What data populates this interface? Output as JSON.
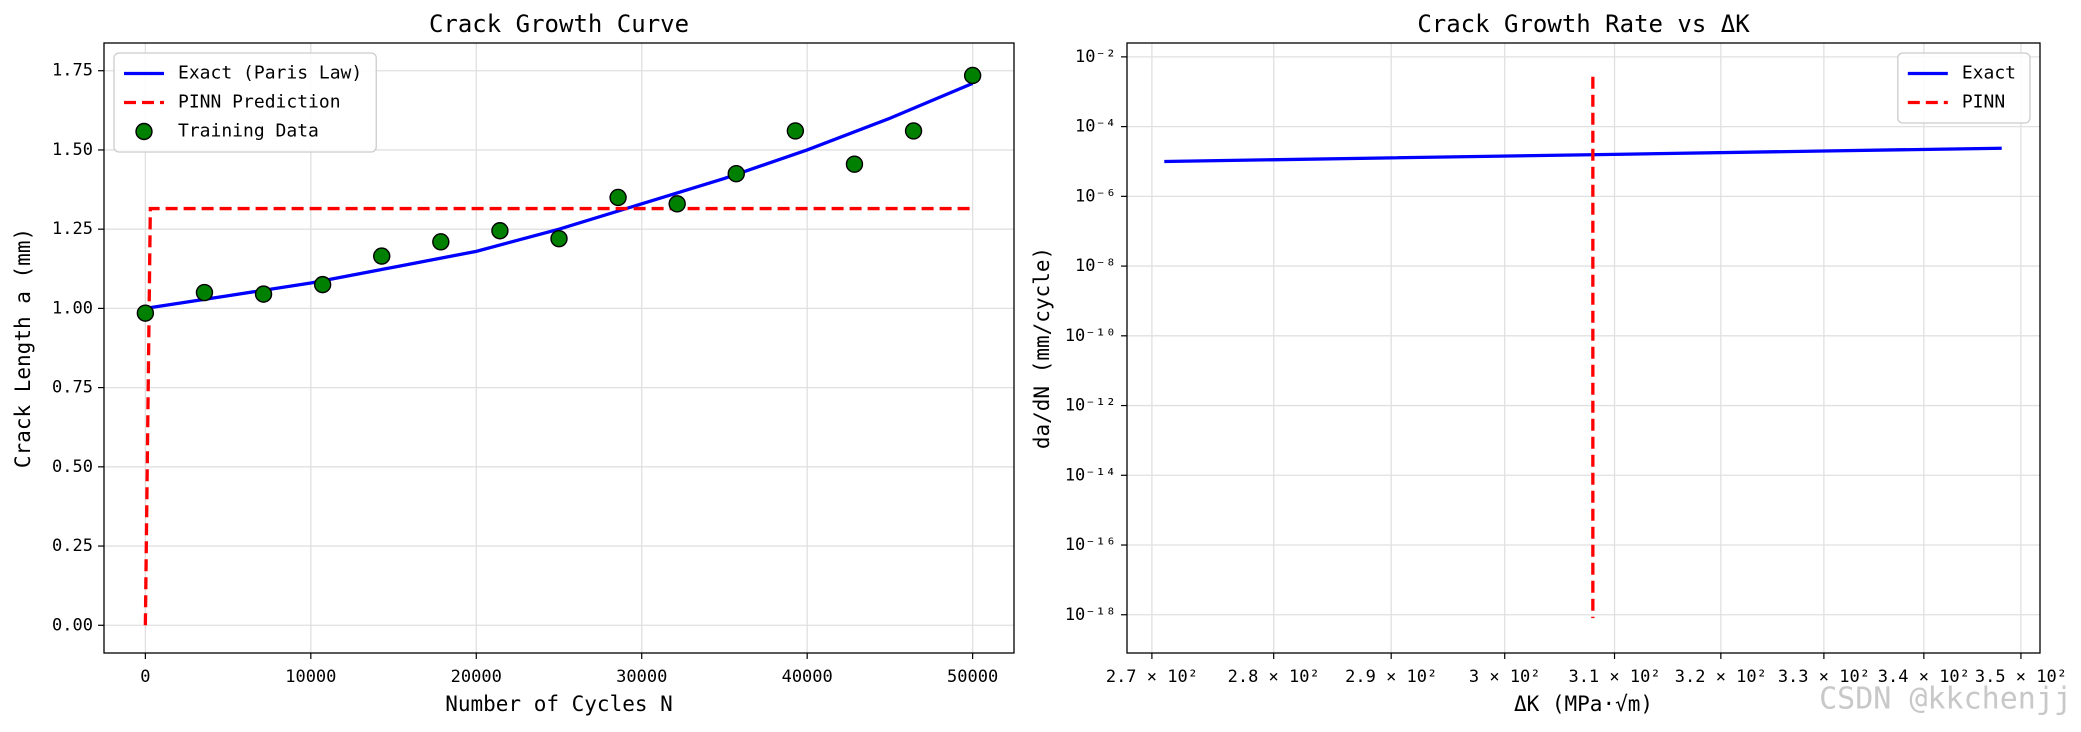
{
  "chart_data": [
    {
      "type": "line",
      "title": "Crack Growth Curve",
      "xlabel": "Number of Cycles N",
      "ylabel": "Crack Length a (mm)",
      "xlim": [
        -2500,
        52500
      ],
      "ylim": [
        -0.0875,
        1.8375
      ],
      "xticks": [
        0,
        10000,
        20000,
        30000,
        40000,
        50000
      ],
      "yticks": [
        {
          "value": 0,
          "label": "0.00"
        },
        0.25,
        {
          "value": 0.5,
          "label": "0.50"
        },
        0.75,
        {
          "value": 1,
          "label": "1.00"
        },
        1.25,
        {
          "value": 1.5,
          "label": "1.50"
        },
        1.75
      ],
      "grid": true,
      "legend": "upper left",
      "series": [
        {
          "name": "Exact (Paris Law)",
          "type": "line",
          "color": "#0000ff",
          "linestyle": "solid",
          "x": [
            0,
            5000,
            10000,
            15000,
            20000,
            25000,
            30000,
            35000,
            40000,
            45000,
            50000
          ],
          "values": [
            1.0,
            1.04,
            1.08,
            1.13,
            1.18,
            1.25,
            1.33,
            1.41,
            1.5,
            1.6,
            1.71
          ]
        },
        {
          "name": "PINN Prediction",
          "type": "line",
          "color": "#ff0000",
          "linestyle": "dashed",
          "x": [
            0,
            300,
            50000
          ],
          "values": [
            0,
            1.315,
            1.315
          ]
        },
        {
          "name": "Training Data",
          "type": "scatter",
          "color": "#008000",
          "x": [
            0,
            3571,
            7143,
            10714,
            14286,
            17857,
            21429,
            25000,
            28571,
            32143,
            35714,
            39286,
            42857,
            46429,
            50000
          ],
          "values": [
            0.985,
            1.05,
            1.045,
            1.075,
            1.165,
            1.21,
            1.245,
            1.22,
            1.35,
            1.33,
            1.425,
            1.56,
            1.455,
            1.56,
            1.735
          ]
        }
      ]
    },
    {
      "type": "line",
      "title": "Crack Growth Rate vs ΔK",
      "xlabel": "ΔK (MPa·√m)",
      "ylabel": "da/dN (mm/cycle)",
      "xlog": true,
      "ylog": true,
      "xlim": [
        268,
        352
      ],
      "ylim": [
        8e-20,
        0.025
      ],
      "xticks": [
        {
          "value": 270,
          "label": "2.7 × 10²"
        },
        {
          "value": 280,
          "label": "2.8 × 10²"
        },
        {
          "value": 290,
          "label": "2.9 × 10²"
        },
        {
          "value": 300,
          "label": "3 × 10²"
        },
        {
          "value": 310,
          "label": "3.1 × 10²"
        },
        {
          "value": 320,
          "label": "3.2 × 10²"
        },
        {
          "value": 330,
          "label": "3.3 × 10²"
        },
        {
          "value": 340,
          "label": "3.4 × 10²"
        },
        {
          "value": 350,
          "label": "3.5 × 10²"
        }
      ],
      "yticks": [
        {
          "value": 0.01,
          "label": "10⁻²"
        },
        {
          "value": 0.0001,
          "label": "10⁻⁴"
        },
        {
          "value": 1e-06,
          "label": "10⁻⁶"
        },
        {
          "value": 1e-08,
          "label": "10⁻⁸"
        },
        {
          "value": 1e-10,
          "label": "10⁻¹⁰"
        },
        {
          "value": 1e-12,
          "label": "10⁻¹²"
        },
        {
          "value": 1e-14,
          "label": "10⁻¹⁴"
        },
        {
          "value": 1e-16,
          "label": "10⁻¹⁶"
        },
        {
          "value": 1e-18,
          "label": "10⁻¹⁸"
        }
      ],
      "grid": true,
      "legend": "upper right",
      "series": [
        {
          "name": "Exact",
          "type": "line",
          "color": "#0000ff",
          "linestyle": "solid",
          "x": [
            271,
            290,
            310,
            330,
            348
          ],
          "values": [
            1e-05,
            1.27e-05,
            1.6e-05,
            2e-05,
            2.4e-05
          ]
        },
        {
          "name": "PINN",
          "type": "line",
          "color": "#ff0000",
          "linestyle": "dashed",
          "x": [
            308,
            308
          ],
          "values": [
            0.0027,
            8e-19
          ]
        }
      ]
    }
  ],
  "watermark": "CSDN @kkchenjj"
}
